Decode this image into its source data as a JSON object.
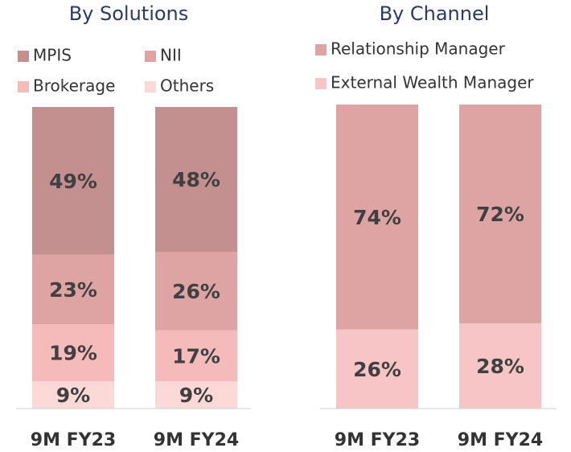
{
  "chart_data": [
    {
      "type": "bar",
      "stacked": true,
      "title": "By Solutions",
      "categories": [
        "9M FY23",
        "9M FY24"
      ],
      "ylim": [
        0,
        100
      ],
      "series": [
        {
          "name": "MPIS",
          "color": "#c48f8f",
          "values": [
            49,
            48
          ],
          "value_labels": [
            "49%",
            "48%"
          ]
        },
        {
          "name": "NII",
          "color": "#dea3a3",
          "values": [
            23,
            26
          ],
          "value_labels": [
            "23%",
            "26%"
          ]
        },
        {
          "name": "Brokerage",
          "color": "#f5baba",
          "values": [
            19,
            17
          ],
          "value_labels": [
            "19%",
            "17%"
          ]
        },
        {
          "name": "Others",
          "color": "#fbd9d7",
          "values": [
            9,
            9
          ],
          "value_labels": [
            "9%",
            "9%"
          ]
        }
      ]
    },
    {
      "type": "bar",
      "stacked": true,
      "title": "By Channel",
      "categories": [
        "9M FY23",
        "9M FY24"
      ],
      "ylim": [
        0,
        100
      ],
      "series": [
        {
          "name": "Relationship Manager",
          "color": "#dea3a3",
          "values": [
            74,
            72
          ],
          "value_labels": [
            "74%",
            "72%"
          ]
        },
        {
          "name": "External Wealth Manager",
          "color": "#f7c5c5",
          "values": [
            26,
            28
          ],
          "value_labels": [
            "26%",
            "28%"
          ]
        }
      ]
    }
  ]
}
